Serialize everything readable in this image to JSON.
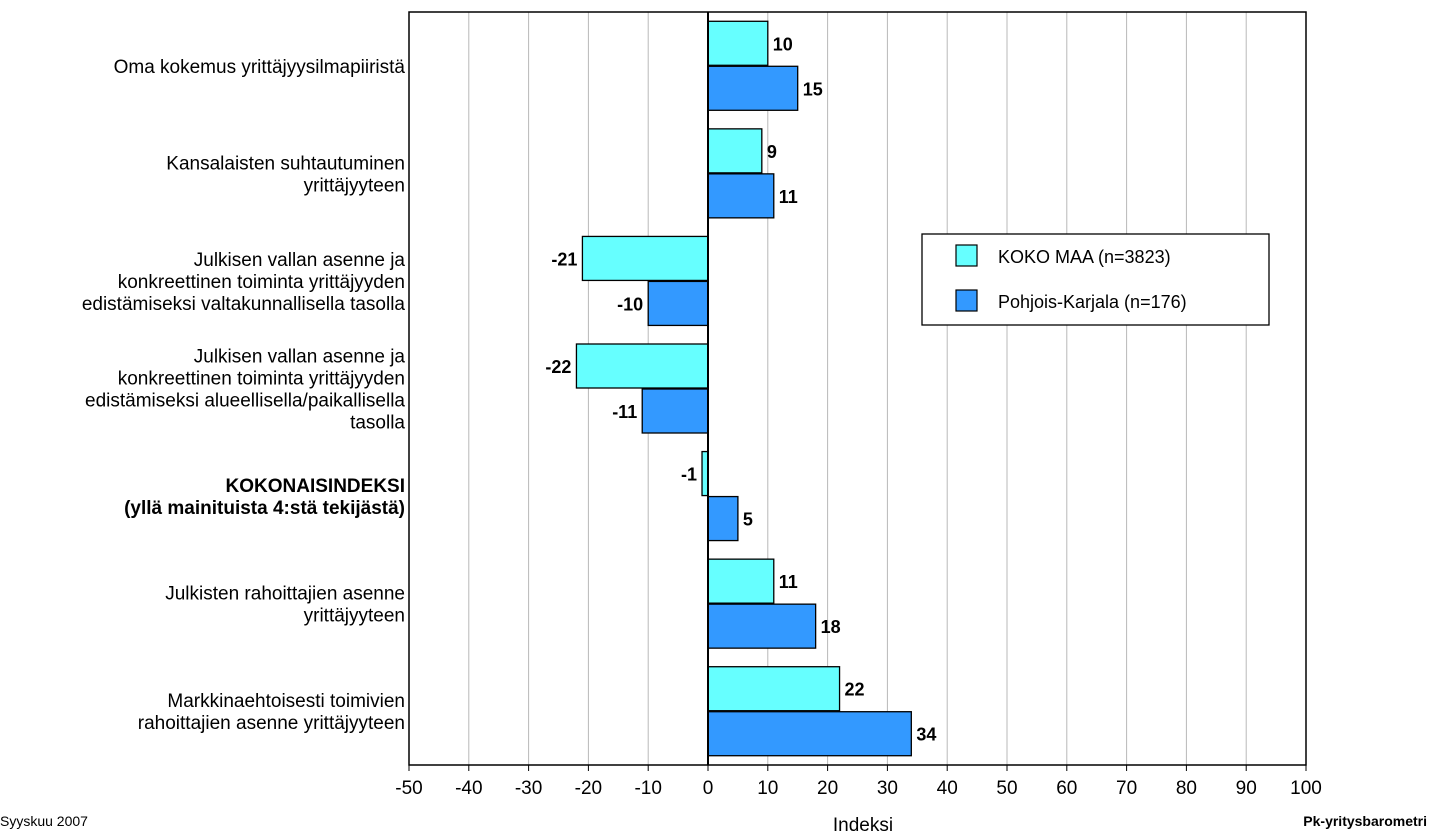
{
  "chart_data": {
    "type": "bar",
    "orientation": "horizontal",
    "categories": [
      [
        "Oma kokemus yrittäjyysilmapiiristä"
      ],
      [
        "Kansalaisten suhtautuminen",
        "yrittäjyyteen"
      ],
      [
        "Julkisen vallan asenne ja",
        "konkreettinen toiminta yrittäjyyden",
        "edistämiseksi valtakunnallisella tasolla"
      ],
      [
        "Julkisen vallan asenne ja",
        "konkreettinen toiminta yrittäjyyden",
        "edistämiseksi alueellisella/paikallisella",
        "tasolla"
      ],
      [
        "KOKONAISINDEKSI",
        "(yllä mainituista 4:stä tekijästä)"
      ],
      [
        "Julkisten rahoittajien asenne",
        "yrittäjyyteen"
      ],
      [
        "Markkinaehtoisesti toimivien",
        "rahoittajien asenne yrittäjyyteen"
      ]
    ],
    "bold_categories": [
      4
    ],
    "series": [
      {
        "name": "KOKO MAA (n=3823)",
        "color": "#66ffff",
        "values": [
          10,
          9,
          -21,
          -22,
          -1,
          11,
          22
        ]
      },
      {
        "name": "Pohjois-Karjala (n=176)",
        "color": "#3399ff",
        "values": [
          15,
          11,
          -10,
          -11,
          5,
          18,
          34
        ]
      }
    ],
    "xlabel": "Indeksi",
    "xlim": [
      -50,
      100
    ],
    "xticks": [
      -50,
      -40,
      -30,
      -20,
      -10,
      0,
      10,
      20,
      30,
      40,
      50,
      60,
      70,
      80,
      90,
      100
    ],
    "grid": true,
    "legend_position": "right"
  },
  "footer": {
    "date": "Syyskuu 2007",
    "source": "Pk-yritysbarometri"
  }
}
